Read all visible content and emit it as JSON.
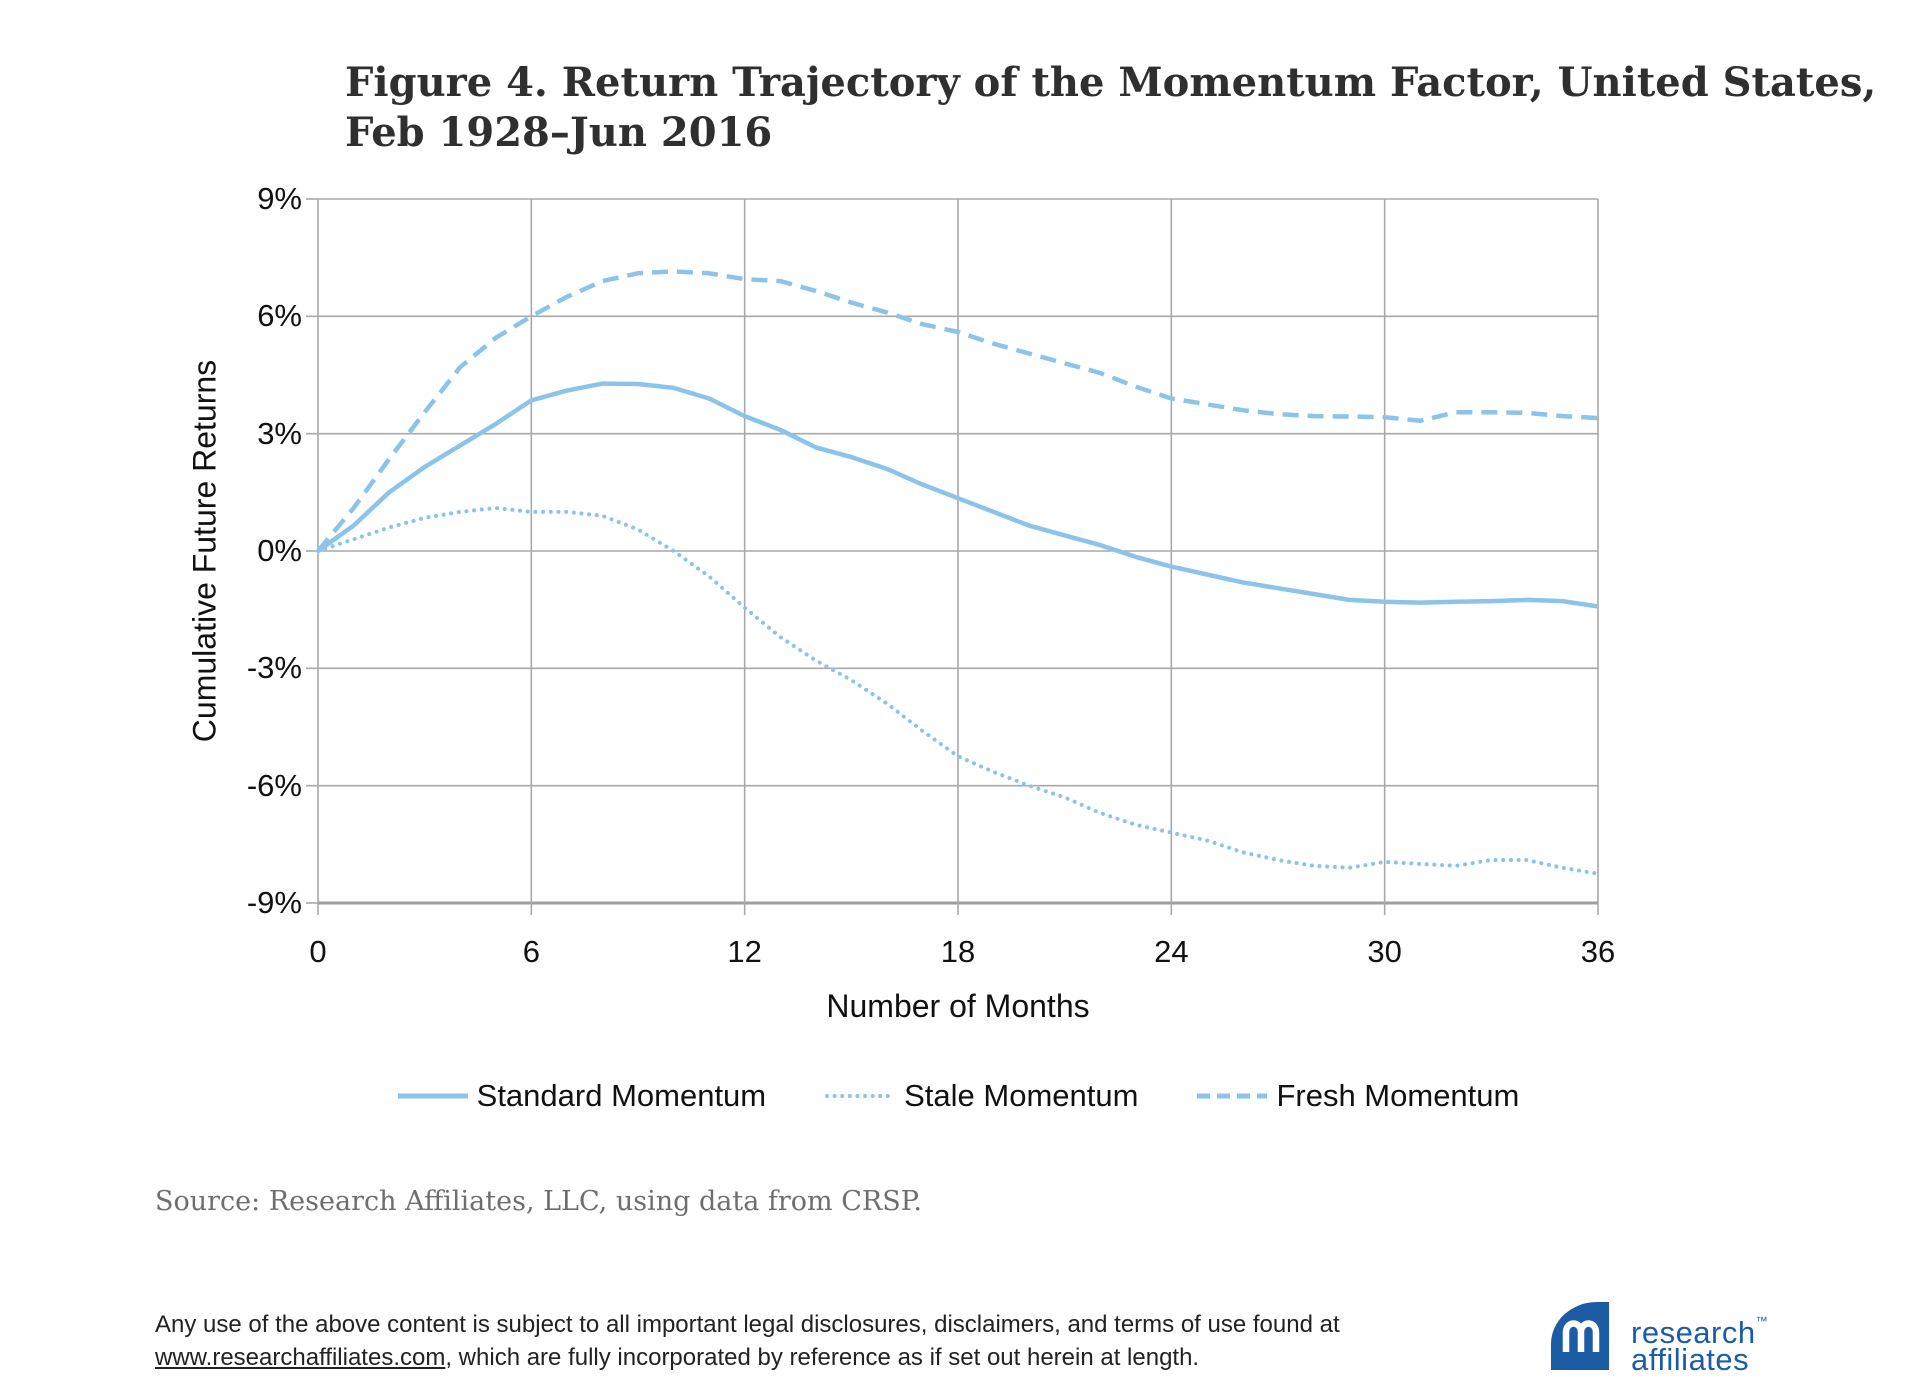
{
  "title": {
    "line1": "Figure 4. Return Trajectory of the Momentum Factor, United States,",
    "line2": "Feb 1928–Jun 2016"
  },
  "chart_data": {
    "type": "line",
    "title": "Figure 4. Return Trajectory of the Momentum Factor, United States, Feb 1928–Jun 2016",
    "xlabel": "Number of Months",
    "ylabel": "Cumulative Future Returns",
    "xlim": [
      0,
      36
    ],
    "ylim": [
      -9,
      9
    ],
    "grid": true,
    "legend_position": "bottom",
    "line_color": "#8cc3ea",
    "grid_color": "#a9a9a9",
    "axis_color": "#9e9e9e",
    "x_ticks": [
      0,
      6,
      12,
      18,
      24,
      30,
      36
    ],
    "y_tick_labels": [
      "9%",
      "6%",
      "3%",
      "0%",
      "-3%",
      "-6%",
      "-9%"
    ],
    "y_tick_values": [
      9,
      6,
      3,
      0,
      -3,
      -6,
      -9
    ],
    "x": [
      0,
      1,
      2,
      3,
      4,
      5,
      6,
      7,
      8,
      9,
      10,
      11,
      12,
      13,
      14,
      15,
      16,
      17,
      18,
      19,
      20,
      21,
      22,
      23,
      24,
      25,
      26,
      27,
      28,
      29,
      30,
      31,
      32,
      33,
      34,
      35,
      36
    ],
    "series": [
      {
        "name": "Standard Momentum",
        "style": "solid",
        "values": [
          0.0,
          0.65,
          1.5,
          2.15,
          2.7,
          3.25,
          3.85,
          4.1,
          4.28,
          4.27,
          4.17,
          3.9,
          3.45,
          3.1,
          2.65,
          2.4,
          2.1,
          1.7,
          1.35,
          1.0,
          0.65,
          0.4,
          0.15,
          -0.15,
          -0.4,
          -0.6,
          -0.8,
          -0.95,
          -1.1,
          -1.25,
          -1.3,
          -1.32,
          -1.3,
          -1.28,
          -1.25,
          -1.28,
          -1.42
        ]
      },
      {
        "name": "Stale Momentum",
        "style": "dotted",
        "values": [
          0.0,
          0.3,
          0.6,
          0.85,
          1.0,
          1.1,
          1.0,
          1.0,
          0.9,
          0.55,
          0.0,
          -0.65,
          -1.45,
          -2.2,
          -2.8,
          -3.3,
          -3.9,
          -4.6,
          -5.25,
          -5.65,
          -6.0,
          -6.3,
          -6.7,
          -7.0,
          -7.2,
          -7.4,
          -7.7,
          -7.9,
          -8.05,
          -8.1,
          -7.95,
          -8.0,
          -8.05,
          -7.9,
          -7.9,
          -8.1,
          -8.25
        ]
      },
      {
        "name": "Fresh Momentum",
        "style": "dashed",
        "values": [
          0.0,
          1.1,
          2.35,
          3.55,
          4.7,
          5.45,
          6.0,
          6.5,
          6.9,
          7.1,
          7.15,
          7.1,
          6.95,
          6.9,
          6.65,
          6.35,
          6.1,
          5.8,
          5.6,
          5.3,
          5.05,
          4.8,
          4.55,
          4.2,
          3.9,
          3.75,
          3.6,
          3.5,
          3.45,
          3.44,
          3.42,
          3.33,
          3.55,
          3.55,
          3.53,
          3.45,
          3.4
        ]
      }
    ]
  },
  "source": "Source:  Research Affiliates, LLC, using data from CRSP.",
  "disclaimer": {
    "text_before_link": "Any use of the above content is subject to all important legal disclosures, disclaimers, and terms of use found at ",
    "link": "www.researchaffiliates.com",
    "text_after_link": ", which are fully incorporated by reference as if set out herein at length."
  },
  "logo": {
    "line1": "research",
    "tm": "™",
    "line2": "affiliates",
    "color": "#1c5ca5"
  }
}
